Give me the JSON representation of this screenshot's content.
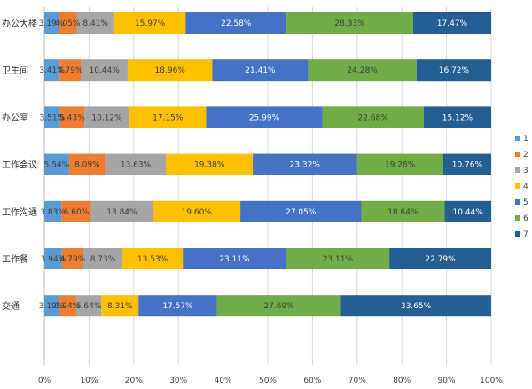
{
  "chart_data": {
    "type": "bar",
    "orientation": "horizontal",
    "stacked": "percent",
    "title": "",
    "xlabel": "",
    "ylabel": "",
    "xlim": [
      0,
      100
    ],
    "x_ticks": [
      "0%",
      "10%",
      "20%",
      "30%",
      "40%",
      "50%",
      "60%",
      "70%",
      "80%",
      "90%",
      "100%"
    ],
    "grid": true,
    "legend_position": "right",
    "categories": [
      "办公大楼",
      "卫生间",
      "办公室",
      "工作会议",
      "工作沟通",
      "工作餐",
      "交通"
    ],
    "series": [
      {
        "name": "1",
        "color": "#5b9bd5",
        "values": [
          3.19,
          3.41,
          3.51,
          5.54,
          3.83,
          3.94,
          3.19
        ]
      },
      {
        "name": "2",
        "color": "#ed7d31",
        "values": [
          4.05,
          4.79,
          5.43,
          8.09,
          6.6,
          4.79,
          3.94
        ]
      },
      {
        "name": "3",
        "color": "#a5a5a5",
        "values": [
          8.41,
          10.44,
          10.12,
          13.63,
          13.84,
          8.73,
          5.64
        ]
      },
      {
        "name": "4",
        "color": "#ffc000",
        "values": [
          15.97,
          18.96,
          17.15,
          19.38,
          19.6,
          13.53,
          8.31
        ]
      },
      {
        "name": "5",
        "color": "#4472c4",
        "values": [
          22.58,
          21.41,
          25.99,
          23.32,
          27.05,
          23.11,
          17.57
        ]
      },
      {
        "name": "6",
        "color": "#70ad47",
        "values": [
          28.33,
          24.28,
          22.68,
          19.28,
          18.64,
          23.11,
          27.69
        ]
      },
      {
        "name": "7",
        "color": "#255e91",
        "values": [
          17.47,
          16.72,
          15.12,
          10.76,
          10.44,
          22.79,
          33.65
        ]
      }
    ],
    "data_labels": [
      [
        "3.19%",
        "4.05%",
        "8.41%",
        "15.97%",
        "22.58%",
        "28.33%",
        "17.47%"
      ],
      [
        "3.41%",
        "4.79%",
        "10.44%",
        "18.96%",
        "21.41%",
        "24.28%",
        "16.72%"
      ],
      [
        "3.51%",
        "5.43%",
        "10.12%",
        "17.15%",
        "25.99%",
        "22.68%",
        "15.12%"
      ],
      [
        "5.54%",
        "8.09%",
        "13.63%",
        "19.38%",
        "23.32%",
        "19.28%",
        "10.76%"
      ],
      [
        "3.83%",
        "6.60%",
        "13.84%",
        "19.60%",
        "27.05%",
        "18.64%",
        "10.44%"
      ],
      [
        "3.94%",
        "4.79%",
        "8.73%",
        "13.53%",
        "23.11%",
        "23.11%",
        "22.79%"
      ],
      [
        "3.19%",
        "3.94%",
        "5.64%",
        "8.31%",
        "17.57%",
        "27.69%",
        "33.65%"
      ]
    ],
    "label_colors": {
      "dark": "#404040",
      "light": "#ffffff"
    },
    "grid_color": "#d9d9d9",
    "axis_color": "#bfbfbf"
  }
}
